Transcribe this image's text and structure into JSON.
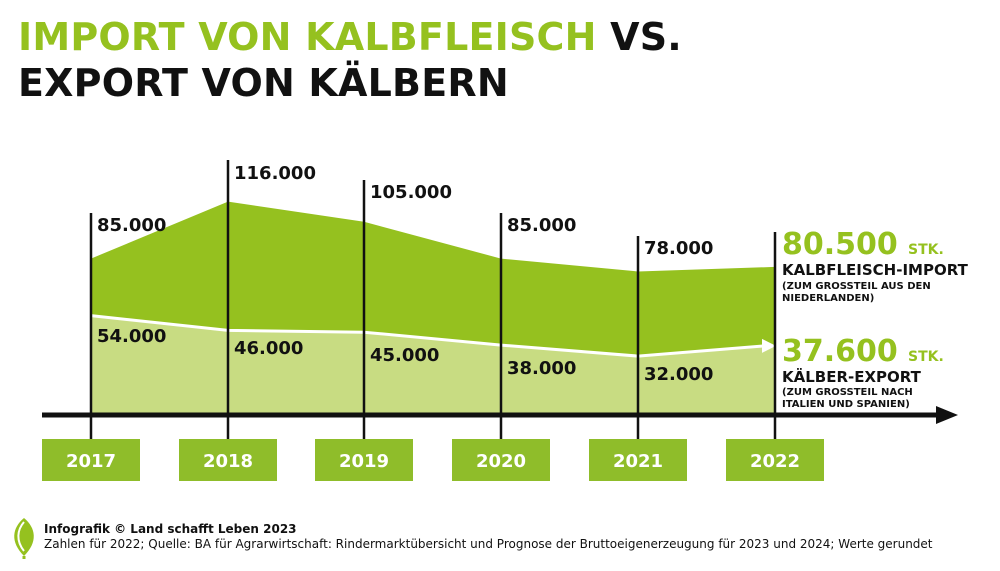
{
  "title": {
    "line1_green": "IMPORT VON KALBFLEISCH",
    "line1_black": "VS.",
    "line2": "EXPORT VON KÄLBERN"
  },
  "colors": {
    "import": "#95c11f",
    "export": "#c8dc82",
    "axis": "#111111",
    "year_box": "#8fbd2a",
    "white": "#ffffff"
  },
  "chart_data": {
    "type": "area",
    "categories": [
      "2017",
      "2018",
      "2019",
      "2020",
      "2021",
      "2022"
    ],
    "series": [
      {
        "name": "KALBFLEISCH-IMPORT",
        "values": [
          85000,
          116000,
          105000,
          85000,
          78000,
          80500
        ],
        "labels": [
          "85.000",
          "116.000",
          "105.000",
          "85.000",
          "78.000",
          "80.500"
        ]
      },
      {
        "name": "KÄLBER-EXPORT",
        "values": [
          54000,
          46000,
          45000,
          38000,
          32000,
          37600
        ],
        "labels": [
          "54.000",
          "46.000",
          "45.000",
          "38.000",
          "32.000",
          "37.600"
        ]
      }
    ],
    "ylim": [
      0,
      125000
    ],
    "grid": false,
    "legend": "right"
  },
  "annotations": {
    "import": {
      "value": "80.500",
      "unit": "STK.",
      "name": "KALBFLEISCH-IMPORT",
      "note1": "(ZUM GROSSTEIL AUS DEN",
      "note2": "NIEDERLANDEN)"
    },
    "export": {
      "value": "37.600",
      "unit": "STK.",
      "name": "KÄLBER-EXPORT",
      "note1": "(ZUM GROSSTEIL NACH",
      "note2": "ITALIEN UND SPANIEN)"
    }
  },
  "footer": {
    "credit": "Infografik © Land schafft Leben 2023",
    "source": "Zahlen für 2022; Quelle: BA für Agrarwirtschaft: Rindermarktübersicht und Prognose der Bruttoeigenerzeugung für 2023 und 2024; Werte gerundet"
  },
  "logo_icon": "leaf-icon"
}
